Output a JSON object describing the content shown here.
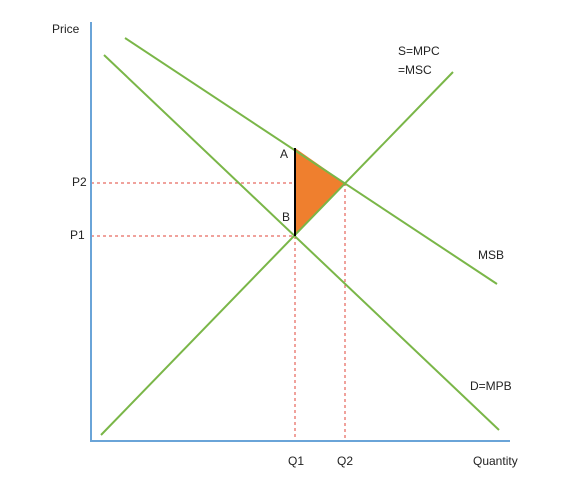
{
  "axes": {
    "y_label": "Price",
    "x_label": "Quantity"
  },
  "prices": [
    "P2",
    "P1"
  ],
  "quantities": [
    "Q1",
    "Q2"
  ],
  "points": [
    "A",
    "B"
  ],
  "curves": {
    "supply": [
      "S=MPC",
      "=MSC"
    ],
    "msb": "MSB",
    "demand": "D=MPB"
  }
}
